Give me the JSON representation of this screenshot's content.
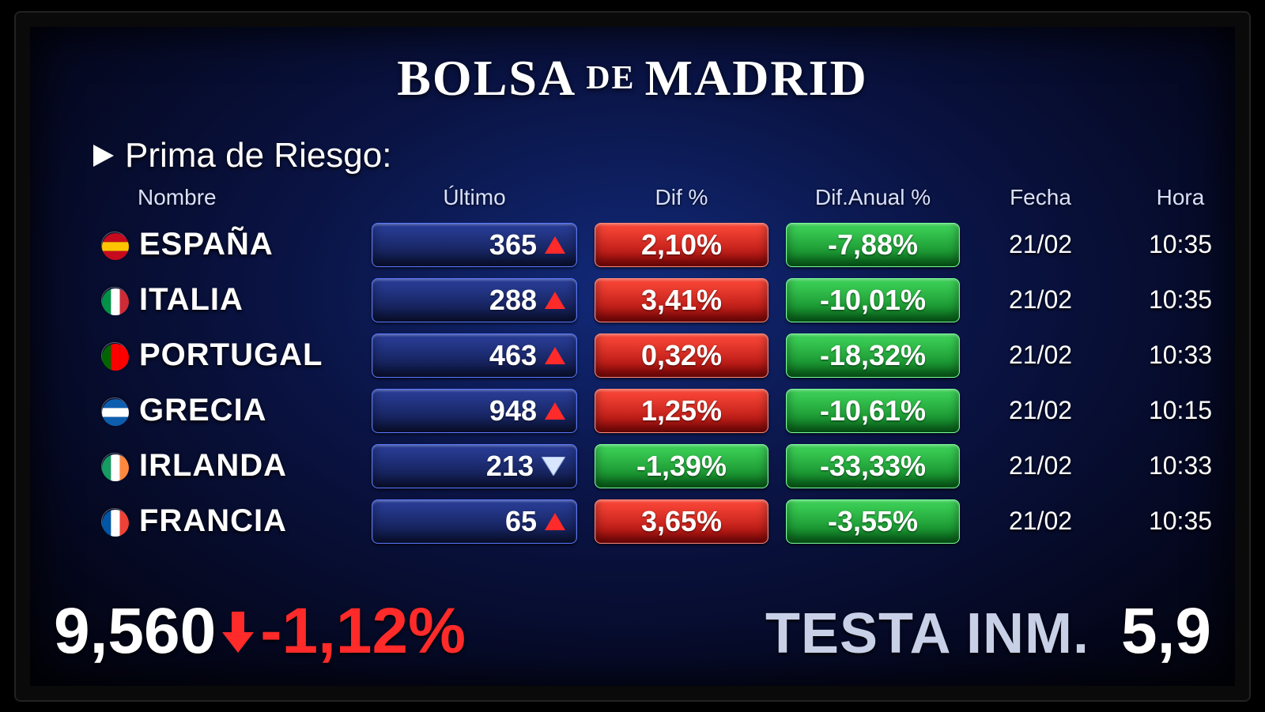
{
  "colors": {
    "bg_grad_inner": "#122a7a",
    "bg_grad_outer": "#02040f",
    "pill_blue_top": "#2a3f9c",
    "pill_blue_bot": "#0d1640",
    "pill_blue_border": "#5a78ff",
    "pill_red_top": "#ff4a3a",
    "pill_red_bot": "#a00808",
    "pill_red_border": "#ff8a7a",
    "pill_green_top": "#3fd65a",
    "pill_green_bot": "#0a7a20",
    "pill_green_border": "#7aff9a",
    "arrow_up": "#ff2a2a",
    "arrow_down": "#d8e6ff",
    "ticker_neg": "#ff2a2a",
    "text": "#ffffff",
    "header_text": "#d8e0ff"
  },
  "title": {
    "word1": "BOLSA",
    "de": "DE",
    "word2": "MADRID"
  },
  "subtitle": "Prima de Riesgo:",
  "columns": [
    "Nombre",
    "Último",
    "Dif %",
    "Dif.Anual %",
    "Fecha",
    "Hora"
  ],
  "rows": [
    {
      "flag": "es",
      "flag_colors": [
        "#c60b1e",
        "#ffc400",
        "#c60b1e"
      ],
      "name": "ESPAÑA",
      "last": "365",
      "dir": "up",
      "dif": "2,10%",
      "dif_pos": true,
      "anual": "-7,88%",
      "anual_pos": false,
      "fecha": "21/02",
      "hora": "10:35"
    },
    {
      "flag": "it",
      "flag_colors": [
        "#009246",
        "#ffffff",
        "#ce2b37"
      ],
      "name": "ITALIA",
      "last": "288",
      "dir": "up",
      "dif": "3,41%",
      "dif_pos": true,
      "anual": "-10,01%",
      "anual_pos": false,
      "fecha": "21/02",
      "hora": "10:35"
    },
    {
      "flag": "pt",
      "flag_colors": [
        "#006600",
        "#ff0000",
        "#ff0000"
      ],
      "name": "PORTUGAL",
      "last": "463",
      "dir": "up",
      "dif": "0,32%",
      "dif_pos": true,
      "anual": "-18,32%",
      "anual_pos": false,
      "fecha": "21/02",
      "hora": "10:33"
    },
    {
      "flag": "gr",
      "flag_colors": [
        "#0d5eaf",
        "#ffffff",
        "#0d5eaf"
      ],
      "name": "GRECIA",
      "last": "948",
      "dir": "up",
      "dif": "1,25%",
      "dif_pos": true,
      "anual": "-10,61%",
      "anual_pos": false,
      "fecha": "21/02",
      "hora": "10:15"
    },
    {
      "flag": "ie",
      "flag_colors": [
        "#169b62",
        "#ffffff",
        "#ff883e"
      ],
      "name": "IRLANDA",
      "last": "213",
      "dir": "down",
      "dif": "-1,39%",
      "dif_pos": false,
      "anual": "-33,33%",
      "anual_pos": false,
      "fecha": "21/02",
      "hora": "10:33"
    },
    {
      "flag": "fr",
      "flag_colors": [
        "#0055a4",
        "#ffffff",
        "#ef4135"
      ],
      "name": "FRANCIA",
      "last": "65",
      "dir": "up",
      "dif": "3,65%",
      "dif_pos": true,
      "anual": "-3,55%",
      "anual_pos": false,
      "fecha": "21/02",
      "hora": "10:35"
    }
  ],
  "ticker": {
    "index": "9,560",
    "dir": "down",
    "pct": "-1,12%",
    "pct_pos": false,
    "symbol": "TESTA INM.",
    "price": "5,9"
  },
  "fontsize": {
    "title": 64,
    "title_de": 42,
    "subtitle": 44,
    "header": 28,
    "name": 40,
    "pill": 36,
    "dt": 32,
    "ticker_main": 82,
    "ticker_sym": 72
  }
}
